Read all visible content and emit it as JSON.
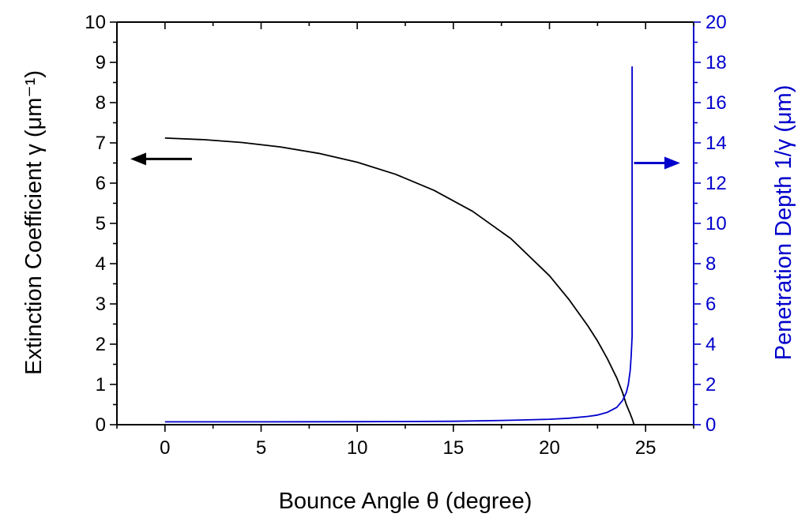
{
  "chart_data": {
    "type": "line",
    "xlabel": "Bounce Angle θ (degree)",
    "ylabel_left": "Extinction Coefficient γ (μm⁻¹)",
    "ylabel_right": "Penetration Depth 1/γ (μm)",
    "xlim": [
      -2.5,
      27.5
    ],
    "ylim_left": [
      0,
      10
    ],
    "ylim_right": [
      0,
      20
    ],
    "x_ticks": [
      0,
      5,
      10,
      15,
      20,
      25
    ],
    "y_left_ticks": [
      0,
      1,
      2,
      3,
      4,
      5,
      6,
      7,
      8,
      9,
      10
    ],
    "y_right_ticks": [
      0,
      2,
      4,
      6,
      8,
      10,
      12,
      14,
      16,
      18,
      20
    ],
    "grid": false,
    "colors": {
      "left_axis": "#000000",
      "right_axis": "#0000cc",
      "series_extinction": "#000000",
      "series_penetration": "#0000cc"
    },
    "series": [
      {
        "axis": "left",
        "x": [
          0,
          2,
          4,
          6,
          8,
          10,
          12,
          14,
          16,
          18,
          20,
          21,
          22,
          22.5,
          23,
          23.5,
          23.8,
          24,
          24.2,
          24.3,
          24.4
        ],
        "y": [
          7.12,
          7.08,
          7.01,
          6.9,
          6.74,
          6.52,
          6.22,
          5.82,
          5.3,
          4.62,
          3.7,
          3.12,
          2.45,
          2.08,
          1.65,
          1.16,
          0.8,
          0.5,
          0.27,
          0.15,
          0.0
        ]
      },
      {
        "axis": "right",
        "x": [
          0,
          5,
          10,
          15,
          18,
          20,
          21,
          22,
          22.5,
          23,
          23.5,
          23.8,
          24,
          24.1,
          24.2,
          24.25,
          24.3,
          24.3,
          24.3
        ],
        "y": [
          0.14,
          0.14,
          0.15,
          0.17,
          0.22,
          0.27,
          0.32,
          0.41,
          0.48,
          0.61,
          0.86,
          1.2,
          1.6,
          2.0,
          2.7,
          3.4,
          4.4,
          10.0,
          17.8
        ]
      }
    ],
    "annotations": [
      {
        "type": "arrow",
        "direction": "left",
        "points_to_axis": "left",
        "x": 1.4,
        "y_left": 6.6,
        "length_x": 3.2
      },
      {
        "type": "arrow",
        "direction": "right",
        "points_to_axis": "right",
        "x": 24.4,
        "y_left": 6.5,
        "length_x": 2.4
      }
    ]
  }
}
